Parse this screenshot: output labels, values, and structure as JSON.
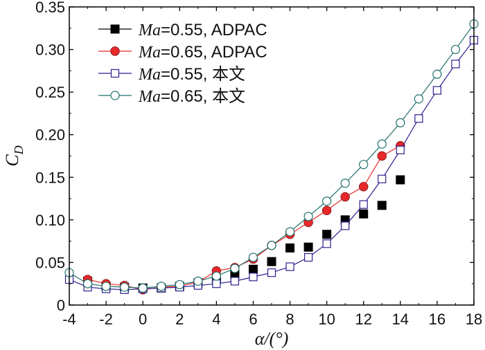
{
  "chart_data": {
    "type": "line",
    "title": "",
    "xlabel": "α/(°)",
    "ylabel": "C",
    "ylabel_sub": "D",
    "xlim": [
      -4,
      18
    ],
    "ylim": [
      0,
      0.35
    ],
    "xticks": [
      -4,
      -2,
      0,
      2,
      4,
      6,
      8,
      10,
      12,
      14,
      16,
      18
    ],
    "yticks": [
      0,
      0.05,
      0.1,
      0.15,
      0.2,
      0.25,
      0.3,
      0.35
    ],
    "xtick_labels": [
      "-4",
      "-2",
      "0",
      "2",
      "4",
      "6",
      "8",
      "10",
      "12",
      "14",
      "16",
      "18"
    ],
    "ytick_labels": [
      "0",
      "0.05",
      "0.10",
      "0.15",
      "0.20",
      "0.25",
      "0.30",
      "0.35"
    ],
    "legend_position": "top-left",
    "series": [
      {
        "name": "Ma=0.55, ADPAC",
        "legend_italic": "Ma",
        "legend_rest": "=0.55, ADPAC",
        "marker": "square-filled",
        "color": "#000000",
        "line": false,
        "x": [
          -3,
          -2,
          -1,
          0,
          1,
          2,
          3,
          4,
          5,
          6,
          7,
          8,
          9,
          10,
          11,
          12,
          13,
          14
        ],
        "y": [
          0.028,
          0.022,
          0.021,
          0.02,
          0.02,
          0.022,
          0.026,
          0.031,
          0.036,
          0.042,
          0.051,
          0.067,
          0.068,
          0.083,
          0.1,
          0.107,
          0.117,
          0.147
        ]
      },
      {
        "name": "Ma=0.65, ADPAC",
        "legend_italic": "Ma",
        "legend_rest": "=0.65, ADPAC",
        "marker": "circle-filled",
        "color": "#e8282b",
        "line": true,
        "x": [
          -3,
          -2,
          -1,
          0,
          1,
          2,
          3,
          4,
          5,
          6,
          7,
          8,
          9,
          10,
          11,
          12,
          13,
          14
        ],
        "y": [
          0.03,
          0.025,
          0.023,
          0.018,
          0.021,
          0.022,
          0.027,
          0.04,
          0.044,
          0.054,
          0.07,
          0.083,
          0.097,
          0.111,
          0.127,
          0.139,
          0.175,
          0.187
        ]
      },
      {
        "name": "Ma=0.55, 本文",
        "legend_italic": "Ma",
        "legend_rest": "=0.55, 本文",
        "marker": "square-open",
        "color": "#2b1f8f",
        "line": true,
        "x": [
          -4,
          -3,
          -2,
          -1,
          0,
          1,
          2,
          3,
          4,
          5,
          6,
          7,
          8,
          9,
          10,
          11,
          12,
          13,
          14,
          15,
          16,
          17,
          18
        ],
        "y": [
          0.03,
          0.021,
          0.019,
          0.018,
          0.019,
          0.02,
          0.021,
          0.023,
          0.025,
          0.028,
          0.033,
          0.038,
          0.045,
          0.056,
          0.072,
          0.093,
          0.118,
          0.148,
          0.182,
          0.219,
          0.252,
          0.283,
          0.311
        ]
      },
      {
        "name": "Ma=0.65, 本文",
        "legend_italic": "Ma",
        "legend_rest": "=0.65, 本文",
        "marker": "circle-open",
        "color": "#1f6f6b",
        "line": true,
        "x": [
          -4,
          -3,
          -2,
          -1,
          0,
          1,
          2,
          3,
          4,
          5,
          6,
          7,
          8,
          9,
          10,
          11,
          12,
          13,
          14,
          15,
          16,
          17,
          18
        ],
        "y": [
          0.038,
          0.025,
          0.022,
          0.021,
          0.02,
          0.022,
          0.024,
          0.028,
          0.034,
          0.043,
          0.056,
          0.07,
          0.086,
          0.104,
          0.122,
          0.143,
          0.165,
          0.189,
          0.214,
          0.242,
          0.271,
          0.3,
          0.33
        ]
      }
    ]
  }
}
